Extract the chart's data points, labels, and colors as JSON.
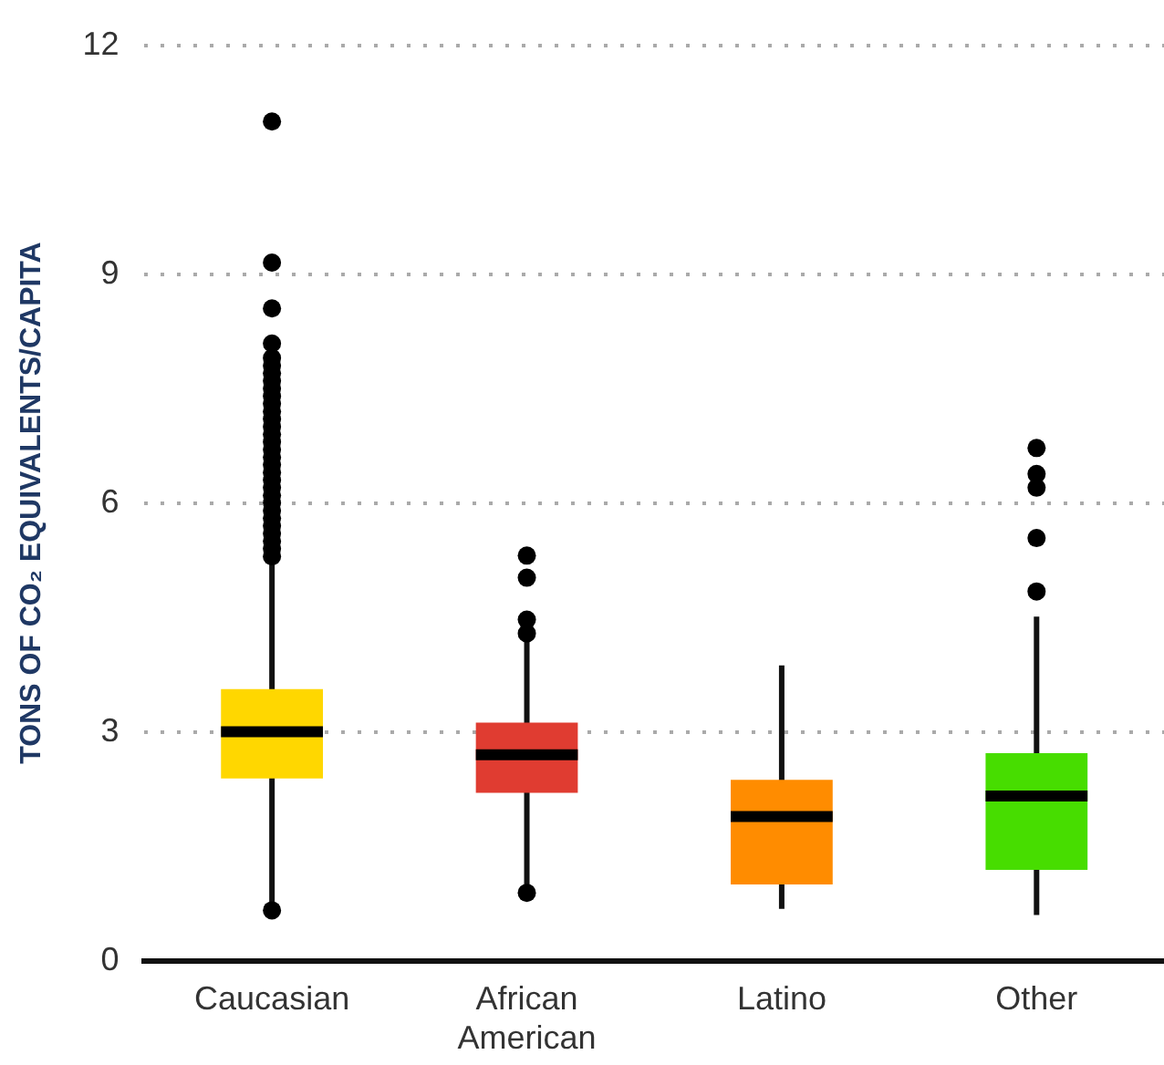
{
  "chart_data": {
    "type": "box",
    "ylabel": "TONS OF CO₂ EQUIVALENTS/CAPITA",
    "categories": [
      "Caucasian",
      "African American",
      "Latino",
      "Other"
    ],
    "colors": [
      "#ffd700",
      "#e03c31",
      "#ff8c00",
      "#47dd00"
    ],
    "boxes": [
      {
        "low": 0.7,
        "q1": 2.39,
        "median": 3.0,
        "q3": 3.56,
        "high": 5.23,
        "outliers": [
          0.66,
          11.0,
          9.15,
          8.55,
          8.09,
          7.9,
          7.8,
          7.7,
          7.6,
          7.5,
          7.4,
          7.3,
          7.2,
          7.1,
          7.0,
          6.9,
          6.8,
          6.7,
          6.6,
          6.5,
          6.4,
          6.3,
          6.2,
          6.1,
          6.0,
          5.9,
          5.8,
          5.7,
          5.6,
          5.5,
          5.4,
          5.3
        ]
      },
      {
        "low": 0.9,
        "q1": 2.2,
        "median": 2.7,
        "q3": 3.12,
        "high": 4.21,
        "outliers": [
          0.89,
          4.29,
          4.47,
          5.02,
          5.31
        ]
      },
      {
        "low": 0.68,
        "q1": 1.0,
        "median": 1.89,
        "q3": 2.37,
        "high": 3.87
      },
      {
        "low": 0.6,
        "q1": 1.19,
        "median": 2.16,
        "q3": 2.72,
        "high": 4.51,
        "outliers": [
          4.84,
          5.54,
          6.2,
          6.38,
          6.72
        ]
      }
    ],
    "ylim": [
      0,
      12
    ],
    "yticks": [
      0,
      3,
      6,
      9,
      12
    ],
    "grid": "y"
  }
}
